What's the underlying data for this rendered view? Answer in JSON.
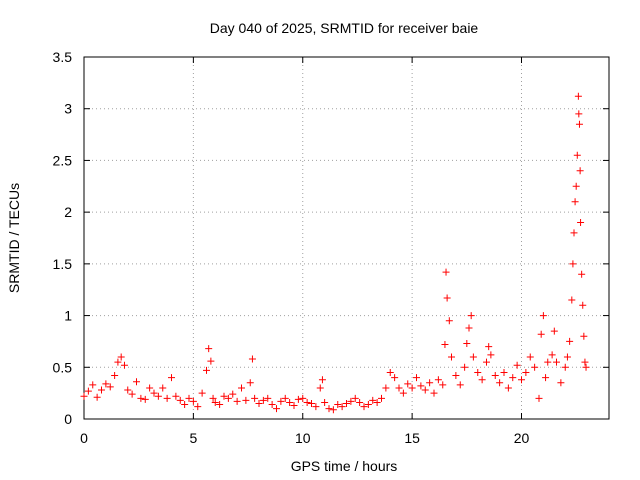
{
  "chart_data": {
    "type": "scatter",
    "title": "Day 040 of 2025, SRMTID for receiver baie",
    "xlabel": "GPS time / hours",
    "ylabel": "SRMTID / TECUs",
    "xlim": [
      0,
      24
    ],
    "ylim": [
      0,
      3.5
    ],
    "xticks": [
      0,
      5,
      10,
      15,
      20
    ],
    "xtick_labels": [
      "0",
      "5",
      "10",
      "15",
      "20"
    ],
    "yticks": [
      0,
      0.5,
      1,
      1.5,
      2,
      2.5,
      3,
      3.5
    ],
    "ytick_labels": [
      "0",
      "0.5",
      "1",
      "1.5",
      "2",
      "2.5",
      "3",
      "3.5"
    ],
    "grid": true,
    "marker": "+",
    "marker_color": "#ff0000",
    "series": [
      {
        "name": "SRMTID",
        "points": [
          [
            0.0,
            0.22
          ],
          [
            0.2,
            0.27
          ],
          [
            0.4,
            0.33
          ],
          [
            0.6,
            0.21
          ],
          [
            0.8,
            0.28
          ],
          [
            1.0,
            0.34
          ],
          [
            1.2,
            0.31
          ],
          [
            1.4,
            0.42
          ],
          [
            1.55,
            0.55
          ],
          [
            1.7,
            0.6
          ],
          [
            1.85,
            0.52
          ],
          [
            2.0,
            0.28
          ],
          [
            2.2,
            0.24
          ],
          [
            2.4,
            0.36
          ],
          [
            2.6,
            0.2
          ],
          [
            2.8,
            0.19
          ],
          [
            3.0,
            0.3
          ],
          [
            3.2,
            0.25
          ],
          [
            3.4,
            0.22
          ],
          [
            3.6,
            0.3
          ],
          [
            3.8,
            0.2
          ],
          [
            4.0,
            0.4
          ],
          [
            4.2,
            0.22
          ],
          [
            4.4,
            0.18
          ],
          [
            4.6,
            0.14
          ],
          [
            4.8,
            0.2
          ],
          [
            5.0,
            0.17
          ],
          [
            5.2,
            0.12
          ],
          [
            5.4,
            0.25
          ],
          [
            5.6,
            0.47
          ],
          [
            5.7,
            0.68
          ],
          [
            5.8,
            0.56
          ],
          [
            5.9,
            0.2
          ],
          [
            6.0,
            0.16
          ],
          [
            6.2,
            0.14
          ],
          [
            6.4,
            0.22
          ],
          [
            6.6,
            0.2
          ],
          [
            6.8,
            0.24
          ],
          [
            7.0,
            0.17
          ],
          [
            7.2,
            0.3
          ],
          [
            7.4,
            0.18
          ],
          [
            7.6,
            0.35
          ],
          [
            7.7,
            0.58
          ],
          [
            7.8,
            0.2
          ],
          [
            8.0,
            0.15
          ],
          [
            8.2,
            0.18
          ],
          [
            8.4,
            0.2
          ],
          [
            8.6,
            0.14
          ],
          [
            8.8,
            0.1
          ],
          [
            9.0,
            0.17
          ],
          [
            9.2,
            0.2
          ],
          [
            9.4,
            0.16
          ],
          [
            9.6,
            0.13
          ],
          [
            9.8,
            0.19
          ],
          [
            10.0,
            0.2
          ],
          [
            10.2,
            0.16
          ],
          [
            10.4,
            0.15
          ],
          [
            10.6,
            0.12
          ],
          [
            10.8,
            0.3
          ],
          [
            10.9,
            0.38
          ],
          [
            11.0,
            0.16
          ],
          [
            11.2,
            0.1
          ],
          [
            11.4,
            0.09
          ],
          [
            11.6,
            0.14
          ],
          [
            11.8,
            0.12
          ],
          [
            12.0,
            0.15
          ],
          [
            12.2,
            0.17
          ],
          [
            12.4,
            0.2
          ],
          [
            12.6,
            0.16
          ],
          [
            12.8,
            0.12
          ],
          [
            13.0,
            0.14
          ],
          [
            13.2,
            0.18
          ],
          [
            13.4,
            0.16
          ],
          [
            13.6,
            0.2
          ],
          [
            13.8,
            0.3
          ],
          [
            14.0,
            0.45
          ],
          [
            14.2,
            0.4
          ],
          [
            14.4,
            0.3
          ],
          [
            14.6,
            0.25
          ],
          [
            14.8,
            0.34
          ],
          [
            15.0,
            0.3
          ],
          [
            15.2,
            0.4
          ],
          [
            15.4,
            0.32
          ],
          [
            15.6,
            0.28
          ],
          [
            15.8,
            0.35
          ],
          [
            16.0,
            0.25
          ],
          [
            16.2,
            0.38
          ],
          [
            16.4,
            0.33
          ],
          [
            16.5,
            0.72
          ],
          [
            16.55,
            1.42
          ],
          [
            16.6,
            1.17
          ],
          [
            16.7,
            0.95
          ],
          [
            16.8,
            0.6
          ],
          [
            17.0,
            0.42
          ],
          [
            17.2,
            0.33
          ],
          [
            17.4,
            0.5
          ],
          [
            17.5,
            0.73
          ],
          [
            17.6,
            0.88
          ],
          [
            17.7,
            1.0
          ],
          [
            17.8,
            0.6
          ],
          [
            18.0,
            0.45
          ],
          [
            18.2,
            0.38
          ],
          [
            18.4,
            0.55
          ],
          [
            18.5,
            0.7
          ],
          [
            18.6,
            0.62
          ],
          [
            18.8,
            0.42
          ],
          [
            19.0,
            0.35
          ],
          [
            19.2,
            0.45
          ],
          [
            19.4,
            0.3
          ],
          [
            19.6,
            0.4
          ],
          [
            19.8,
            0.52
          ],
          [
            20.0,
            0.38
          ],
          [
            20.2,
            0.45
          ],
          [
            20.4,
            0.6
          ],
          [
            20.6,
            0.5
          ],
          [
            20.8,
            0.2
          ],
          [
            20.9,
            0.82
          ],
          [
            21.0,
            1.0
          ],
          [
            21.1,
            0.4
          ],
          [
            21.2,
            0.55
          ],
          [
            21.4,
            0.62
          ],
          [
            21.5,
            0.85
          ],
          [
            21.6,
            0.55
          ],
          [
            21.8,
            0.35
          ],
          [
            22.0,
            0.5
          ],
          [
            22.1,
            0.6
          ],
          [
            22.2,
            0.75
          ],
          [
            22.3,
            1.15
          ],
          [
            22.35,
            1.5
          ],
          [
            22.4,
            1.8
          ],
          [
            22.45,
            2.1
          ],
          [
            22.5,
            2.25
          ],
          [
            22.55,
            2.55
          ],
          [
            22.6,
            3.12
          ],
          [
            22.62,
            2.95
          ],
          [
            22.65,
            2.85
          ],
          [
            22.68,
            2.4
          ],
          [
            22.7,
            1.9
          ],
          [
            22.75,
            1.4
          ],
          [
            22.8,
            1.1
          ],
          [
            22.85,
            0.8
          ],
          [
            22.9,
            0.55
          ],
          [
            22.95,
            0.5
          ]
        ]
      }
    ]
  }
}
